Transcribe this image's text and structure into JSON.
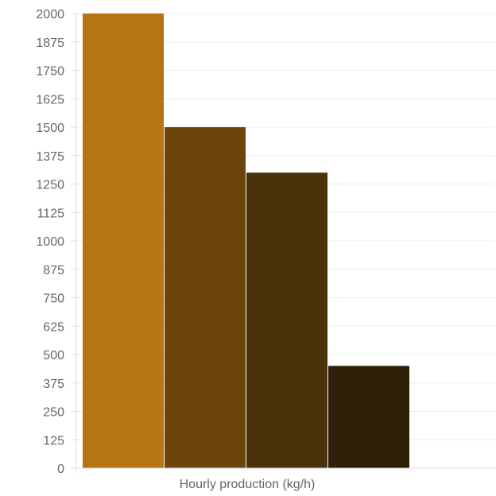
{
  "chart_data": {
    "type": "bar",
    "title": "",
    "xlabel": "Hourly production (kg/h)",
    "ylabel": "",
    "ylim": [
      0,
      2000
    ],
    "yticks": [
      0,
      125,
      250,
      375,
      500,
      625,
      750,
      875,
      1000,
      1125,
      1250,
      1375,
      1500,
      1625,
      1750,
      1875,
      2000
    ],
    "grid": true,
    "legend": "none",
    "bars": [
      {
        "value": 2000,
        "color": "#B77413"
      },
      {
        "value": 1500,
        "color": "#6C450C"
      },
      {
        "value": 1300,
        "color": "#4A320B"
      },
      {
        "value": 450,
        "color": "#2D1F08"
      }
    ]
  }
}
